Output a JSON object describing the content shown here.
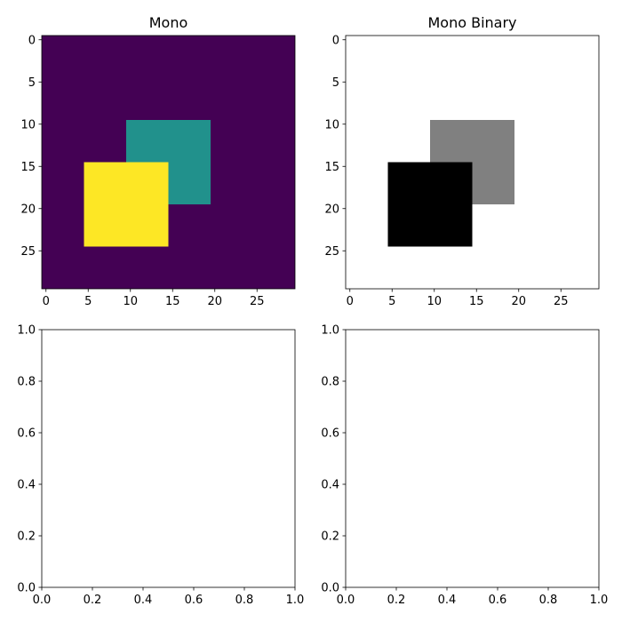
{
  "chart_data": [
    {
      "type": "heatmap",
      "title": "Mono",
      "grid_shape": [
        30,
        30
      ],
      "x_ticks": [
        0,
        5,
        10,
        15,
        20,
        25
      ],
      "y_ticks": [
        0,
        5,
        10,
        15,
        20,
        25
      ],
      "x_tick_labels": [
        "0",
        "5",
        "10",
        "15",
        "20",
        "25"
      ],
      "y_tick_labels": [
        "0",
        "5",
        "10",
        "15",
        "20",
        "25"
      ],
      "xlim": [
        -0.5,
        29.5
      ],
      "ylim": [
        29.5,
        -0.5
      ],
      "grid": false,
      "colormap": "viridis",
      "background": {
        "value": 0,
        "color": "#440154"
      },
      "regions": [
        {
          "rows": [
            10,
            19
          ],
          "cols": [
            10,
            19
          ],
          "value": 1,
          "color": "#21918c"
        },
        {
          "rows": [
            15,
            24
          ],
          "cols": [
            5,
            14
          ],
          "value": 2,
          "color": "#fde725"
        }
      ]
    },
    {
      "type": "heatmap",
      "title": "Mono Binary",
      "grid_shape": [
        30,
        30
      ],
      "x_ticks": [
        0,
        5,
        10,
        15,
        20,
        25
      ],
      "y_ticks": [
        0,
        5,
        10,
        15,
        20,
        25
      ],
      "x_tick_labels": [
        "0",
        "5",
        "10",
        "15",
        "20",
        "25"
      ],
      "y_tick_labels": [
        "0",
        "5",
        "10",
        "15",
        "20",
        "25"
      ],
      "xlim": [
        -0.5,
        29.5
      ],
      "ylim": [
        29.5,
        -0.5
      ],
      "grid": false,
      "colormap": "binary",
      "background": {
        "value": 0,
        "color": "#ffffff"
      },
      "regions": [
        {
          "rows": [
            10,
            19
          ],
          "cols": [
            10,
            19
          ],
          "value": 1,
          "color": "#808080"
        },
        {
          "rows": [
            15,
            24
          ],
          "cols": [
            5,
            14
          ],
          "value": 2,
          "color": "#000000"
        }
      ]
    },
    {
      "type": "scatter",
      "title": "",
      "xlim": [
        0.0,
        1.0
      ],
      "ylim": [
        0.0,
        1.0
      ],
      "x_ticks": [
        0.0,
        0.2,
        0.4,
        0.6,
        0.8,
        1.0
      ],
      "y_ticks": [
        0.0,
        0.2,
        0.4,
        0.6,
        0.8,
        1.0
      ],
      "x_tick_labels": [
        "0.0",
        "0.2",
        "0.4",
        "0.6",
        "0.8",
        "1.0"
      ],
      "y_tick_labels": [
        "0.0",
        "0.2",
        "0.4",
        "0.6",
        "0.8",
        "1.0"
      ],
      "grid": false,
      "series": []
    },
    {
      "type": "scatter",
      "title": "",
      "xlim": [
        0.0,
        1.0
      ],
      "ylim": [
        0.0,
        1.0
      ],
      "x_ticks": [
        0.0,
        0.2,
        0.4,
        0.6,
        0.8,
        1.0
      ],
      "y_ticks": [
        0.0,
        0.2,
        0.4,
        0.6,
        0.8,
        1.0
      ],
      "x_tick_labels": [
        "0.0",
        "0.2",
        "0.4",
        "0.6",
        "0.8",
        "1.0"
      ],
      "y_tick_labels": [
        "0.0",
        "0.2",
        "0.4",
        "0.6",
        "0.8",
        "1.0"
      ],
      "grid": false,
      "series": []
    }
  ]
}
